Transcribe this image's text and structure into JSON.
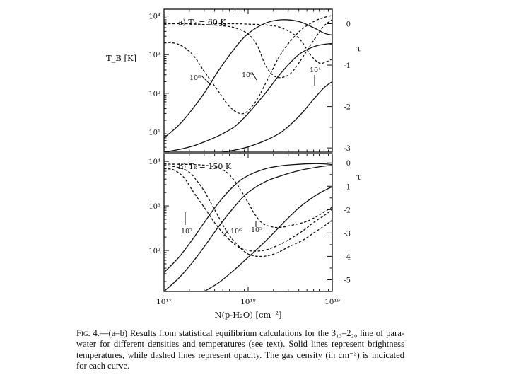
{
  "caption": {
    "fig_label": "Fig. 4.",
    "text": "—(a–b) Results from statistical equilibrium calculations for the 3₁₃–2₂₀ line of para-water for different densities and temperatures (see text). Solid lines represent brightness temperatures, while dashed lines represent opacity. The gas density (in cm⁻³) is indicated for each curve."
  },
  "shared_axis": {
    "xlabel": "N(p-H₂O) [cm⁻²]",
    "x_ticks": [
      "10¹⁷",
      "10¹⁸",
      "10¹⁹"
    ],
    "x_scale": "log",
    "xlim": [
      1e+17,
      1e+19
    ]
  },
  "chart_data": [
    {
      "type": "line",
      "title": "a) Tₖ = 60 K",
      "ylabel": "T_B [K]",
      "y_scale": "log",
      "ylim": [
        3,
        15000
      ],
      "y_ticks": [
        "10⁴",
        "10³",
        "10²",
        "10¹"
      ],
      "tau_label": "τ",
      "tau_ticks": [
        "0",
        "-1",
        "-2",
        "-3"
      ],
      "tau_lim": [
        -3.1,
        0.35
      ],
      "density_labels": [
        "10⁸",
        "10⁶",
        "10⁴"
      ],
      "series": [
        {
          "style": "solid",
          "axis": "left",
          "label": "10⁸",
          "x": [
            1e+17,
            1.5e+17,
            2.2e+17,
            3e+17,
            4.5e+17,
            7e+17,
            1e+18,
            1.6e+18,
            2.5e+18,
            4e+18,
            6e+18,
            8e+18,
            1e+19
          ],
          "y": [
            7,
            15,
            40,
            100,
            400,
            1500,
            3500,
            6500,
            8000,
            7200,
            5000,
            3600,
            3200
          ]
        },
        {
          "style": "solid",
          "axis": "left",
          "label": "10⁶",
          "x": [
            1e+17,
            1.5e+17,
            2.2e+17,
            3e+17,
            4.5e+17,
            7e+17,
            1e+18,
            1.6e+18,
            2.5e+18,
            4e+18,
            6e+18,
            8e+18,
            1e+19
          ],
          "y": [
            3,
            3.5,
            4.3,
            5.5,
            8,
            14,
            30,
            100,
            350,
            1000,
            1600,
            1850,
            1950
          ]
        },
        {
          "style": "solid",
          "axis": "left",
          "label": "10⁴",
          "x": [
            3e+17,
            4.5e+17,
            7e+17,
            1e+18,
            1.6e+18,
            2.5e+18,
            4e+18,
            6e+18,
            8e+18,
            1e+19
          ],
          "y": [
            2.5,
            2.9,
            3.4,
            4.1,
            6,
            10,
            25,
            70,
            140,
            200
          ]
        },
        {
          "style": "dashed",
          "axis": "right",
          "label": "10⁸",
          "x": [
            1e+17,
            1.5e+17,
            2.2e+17,
            3e+17,
            4.5e+17,
            6e+17,
            8e+17,
            1e+18,
            1.3e+18,
            1.8e+18,
            2.5e+18,
            4e+18,
            6e+18,
            8e+18,
            1e+19
          ],
          "y": [
            -0.45,
            -0.5,
            -0.75,
            -1.15,
            -1.65,
            -2.0,
            -2.17,
            -2.1,
            -1.8,
            -1.25,
            -0.7,
            -0.2,
            0.05,
            0.15,
            0.2
          ]
        },
        {
          "style": "dashed",
          "axis": "right",
          "label": "10⁶",
          "x": [
            1e+17,
            2e+17,
            3e+17,
            5e+17,
            7e+17,
            1e+18,
            1.3e+18,
            1.6e+18,
            2e+18,
            2.5e+18,
            3.2e+18,
            4e+18,
            5e+18,
            6.5e+18,
            8e+18,
            1e+19
          ],
          "y": [
            0,
            0,
            -0.02,
            -0.05,
            -0.1,
            -0.25,
            -0.55,
            -1.0,
            -1.25,
            -1.3,
            -1.2,
            -0.95,
            -0.65,
            -0.3,
            -0.05,
            0.1
          ]
        },
        {
          "style": "dashed",
          "axis": "right",
          "label": "10⁴",
          "x": [
            4e+17,
            7e+17,
            1e+18,
            1.6e+18,
            2.5e+18,
            4e+18,
            5.5e+18,
            7e+18,
            8.5e+18,
            1e+19
          ],
          "y": [
            0,
            0,
            -0.01,
            -0.03,
            -0.1,
            -0.35,
            -0.75,
            -0.95,
            -0.92,
            -0.85
          ]
        }
      ]
    },
    {
      "type": "line",
      "title": "b) Tₖ = 150 K",
      "ylabel": "",
      "y_scale": "log",
      "ylim": [
        12,
        15000
      ],
      "y_ticks": [
        "10⁴",
        "10³",
        "10²"
      ],
      "tau_label": "τ",
      "tau_ticks": [
        "0",
        "-1",
        "-2",
        "-3",
        "-4",
        "-5"
      ],
      "tau_lim": [
        -5.5,
        0.4
      ],
      "density_labels": [
        "10⁷",
        "10⁶",
        "10⁵"
      ],
      "series": [
        {
          "style": "solid",
          "axis": "left",
          "label": "10⁷",
          "x": [
            1e+17,
            1.5e+17,
            2.2e+17,
            3e+17,
            4.5e+17,
            7e+17,
            1e+18,
            1.6e+18,
            2.5e+18,
            4e+18,
            6e+18,
            8e+18,
            1e+19
          ],
          "y": [
            32,
            70,
            180,
            420,
            1200,
            3000,
            4800,
            6800,
            8000,
            8600,
            8900,
            8800,
            8500
          ]
        },
        {
          "style": "solid",
          "axis": "left",
          "label": "10⁶",
          "x": [
            1e+17,
            1.5e+17,
            2.2e+17,
            3e+17,
            4.5e+17,
            7e+17,
            1e+18,
            1.6e+18,
            2.5e+18,
            4e+18,
            6e+18,
            8e+18,
            1e+19
          ],
          "y": [
            12,
            24,
            55,
            120,
            350,
            1000,
            2000,
            3500,
            4800,
            6200,
            7200,
            7800,
            8100
          ]
        },
        {
          "style": "solid",
          "axis": "left",
          "label": "10⁵",
          "x": [
            3e+17,
            4.5e+17,
            7e+17,
            1e+18,
            1.6e+18,
            2.5e+18,
            4e+18,
            6e+18,
            8e+18,
            1e+19
          ],
          "y": [
            12,
            19,
            38,
            70,
            160,
            380,
            900,
            1600,
            2200,
            2700
          ]
        },
        {
          "style": "dashed",
          "axis": "right",
          "label": "10⁷",
          "x": [
            1e+17,
            1.3e+17,
            1.7e+17,
            2.2e+17,
            3e+17,
            4.5e+17,
            7e+17,
            1e+18,
            1.5e+18,
            2.2e+18,
            3e+18,
            4.5e+18,
            6e+18,
            8e+18,
            1e+19
          ],
          "y": [
            -0.25,
            -0.3,
            -0.6,
            -1.2,
            -1.9,
            -2.8,
            -3.5,
            -3.75,
            -3.75,
            -3.55,
            -3.3,
            -2.9,
            -2.55,
            -2.25,
            -2.0
          ]
        },
        {
          "style": "dashed",
          "axis": "right",
          "label": "10⁶",
          "x": [
            1e+17,
            1.5e+17,
            2e+17,
            2.5e+17,
            3e+17,
            4e+17,
            5.5e+17,
            7e+17,
            1e+18,
            1.5e+18,
            2.2e+18,
            3e+18,
            4.5e+18,
            6e+18,
            8e+18,
            1e+19
          ],
          "y": [
            -0.1,
            -0.2,
            -0.4,
            -0.8,
            -1.2,
            -2.0,
            -2.9,
            -3.4,
            -3.9,
            -4.0,
            -3.85,
            -3.6,
            -3.3,
            -3.0,
            -2.7,
            -2.45
          ]
        },
        {
          "style": "dashed",
          "axis": "right",
          "label": "10⁵",
          "x": [
            1e+17,
            3e+17,
            5e+17,
            7e+17,
            1e+18,
            1.2e+18,
            1.5e+18,
            2e+18,
            2.5e+18,
            3e+18,
            4e+18,
            5e+18,
            6.5e+18,
            8e+18,
            1e+19
          ],
          "y": [
            -0.05,
            -0.1,
            -0.3,
            -0.8,
            -1.7,
            -2.2,
            -2.6,
            -2.75,
            -2.75,
            -2.7,
            -2.6,
            -2.5,
            -2.3,
            -2.1,
            -1.9
          ]
        }
      ]
    }
  ]
}
